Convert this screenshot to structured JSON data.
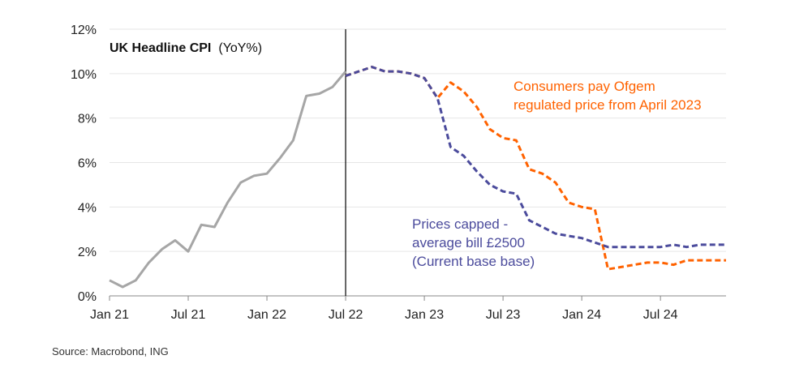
{
  "chart_data": {
    "type": "line",
    "title": "UK Headline CPI",
    "title_suffix": "(YoY%)",
    "ylim": [
      0,
      12
    ],
    "y_ticks": [
      0,
      2,
      4,
      6,
      8,
      10,
      12
    ],
    "y_tick_labels": [
      "0%",
      "2%",
      "4%",
      "6%",
      "8%",
      "10%",
      "12%"
    ],
    "x_tick_labels": [
      "Jan 21",
      "Jul 21",
      "Jan 22",
      "Jul 22",
      "Jan 23",
      "Jul 23",
      "Jan 24",
      "Jul 24"
    ],
    "x_tick_months": [
      "2021-01",
      "2021-07",
      "2022-01",
      "2022-07",
      "2023-01",
      "2023-07",
      "2024-01",
      "2024-07"
    ],
    "x_range": [
      "2021-01",
      "2024-12"
    ],
    "vertical_line_month": "2022-07",
    "grid": "horizontal",
    "series": [
      {
        "key": "actual",
        "color": "#a6a6a6",
        "dashed": false,
        "months": [
          "2021-01",
          "2021-02",
          "2021-03",
          "2021-04",
          "2021-05",
          "2021-06",
          "2021-07",
          "2021-08",
          "2021-09",
          "2021-10",
          "2021-11",
          "2021-12",
          "2022-01",
          "2022-02",
          "2022-03",
          "2022-04",
          "2022-05",
          "2022-06",
          "2022-07"
        ],
        "values": [
          0.7,
          0.4,
          0.7,
          1.5,
          2.1,
          2.5,
          2.0,
          3.2,
          3.1,
          4.2,
          5.1,
          5.4,
          5.5,
          6.2,
          7.0,
          9.0,
          9.1,
          9.4,
          10.1
        ]
      },
      {
        "key": "ofgem",
        "color": "#ff6200",
        "dashed": true,
        "months": [
          "2022-07",
          "2022-08",
          "2022-09",
          "2022-10",
          "2022-11",
          "2022-12",
          "2023-01",
          "2023-02",
          "2023-03",
          "2023-04",
          "2023-05",
          "2023-06",
          "2023-07",
          "2023-08",
          "2023-09",
          "2023-10",
          "2023-11",
          "2023-12",
          "2024-01",
          "2024-02",
          "2024-03",
          "2024-04",
          "2024-05",
          "2024-06",
          "2024-07",
          "2024-08",
          "2024-09",
          "2024-10",
          "2024-11",
          "2024-12"
        ],
        "values": [
          9.9,
          10.1,
          10.3,
          10.1,
          10.1,
          10.0,
          9.8,
          8.9,
          9.6,
          9.2,
          8.5,
          7.5,
          7.1,
          7.0,
          5.7,
          5.5,
          5.1,
          4.2,
          4.0,
          3.9,
          1.2,
          1.3,
          1.4,
          1.5,
          1.5,
          1.4,
          1.6,
          1.6,
          1.6,
          1.6
        ]
      },
      {
        "key": "capped",
        "color": "#4b4b9c",
        "dashed": true,
        "months": [
          "2022-07",
          "2022-08",
          "2022-09",
          "2022-10",
          "2022-11",
          "2022-12",
          "2023-01",
          "2023-02",
          "2023-03",
          "2023-04",
          "2023-05",
          "2023-06",
          "2023-07",
          "2023-08",
          "2023-09",
          "2023-10",
          "2023-11",
          "2023-12",
          "2024-01",
          "2024-02",
          "2024-03",
          "2024-04",
          "2024-05",
          "2024-06",
          "2024-07",
          "2024-08",
          "2024-09",
          "2024-10",
          "2024-11",
          "2024-12"
        ],
        "values": [
          9.9,
          10.1,
          10.3,
          10.1,
          10.1,
          10.0,
          9.8,
          8.9,
          6.7,
          6.3,
          5.6,
          5.0,
          4.7,
          4.6,
          3.4,
          3.1,
          2.8,
          2.7,
          2.6,
          2.4,
          2.2,
          2.2,
          2.2,
          2.2,
          2.2,
          2.3,
          2.2,
          2.3,
          2.3,
          2.3
        ]
      }
    ],
    "annotations": [
      {
        "key": "ofgem",
        "color": "#ff6200",
        "lines": [
          "Consumers pay Ofgem",
          "regulated price from April 2023"
        ]
      },
      {
        "key": "capped",
        "color": "#4b4b9c",
        "lines": [
          "Prices capped -",
          "average bill £2500",
          "(Current base base)"
        ]
      }
    ]
  },
  "source": "Source: Macrobond, ING"
}
